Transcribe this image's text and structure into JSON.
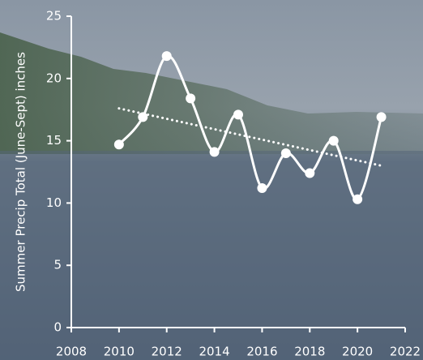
{
  "chart_data": {
    "type": "line",
    "y_label": "Summer Precip Total (June-Sept) inches",
    "x": [
      2010,
      2011,
      2012,
      2013,
      2014,
      2015,
      2016,
      2017,
      2018,
      2019,
      2020,
      2021
    ],
    "series": [
      {
        "color": "#ffffff",
        "values": [
          14.7,
          16.9,
          21.8,
          18.4,
          14.1,
          17.1,
          11.2,
          14.0,
          12.4,
          15.0,
          10.3,
          16.9
        ]
      }
    ],
    "trend": {
      "x": [
        2010,
        2021
      ],
      "values": [
        17.6,
        13.0
      ],
      "color": "#ffffff"
    },
    "xlim": [
      2008,
      2022
    ],
    "xticks": [
      2008,
      2010,
      2012,
      2014,
      2016,
      2018,
      2020,
      2022
    ],
    "ylim": [
      0,
      25
    ],
    "yticks": [
      0,
      5,
      10,
      15,
      20,
      25
    ]
  }
}
